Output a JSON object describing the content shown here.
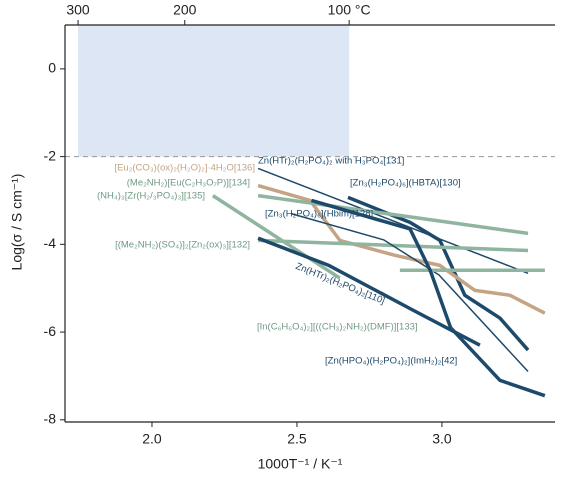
{
  "chart_data": {
    "type": "line",
    "xlabel": "1000T⁻¹ / K⁻¹",
    "ylabel": "Log(σ / S cm⁻¹)",
    "xlim": [
      1.7,
      3.39
    ],
    "ylim": [
      -8.05,
      1.0
    ],
    "xticks": [
      {
        "value": 2,
        "label": "2.0"
      },
      2.5,
      {
        "value": 3,
        "label": "3.0"
      }
    ],
    "yticks": [
      0,
      -2,
      -4,
      -6,
      -8
    ],
    "x2ticks": [
      {
        "value": 1.745,
        "label": "300"
      },
      {
        "value": 2.113,
        "label": "200"
      },
      {
        "value": 2.68,
        "label": "100 °C"
      }
    ],
    "shaded_region": {
      "x": [
        1.745,
        2.68
      ],
      "y_from": -2,
      "color": "#dde6f5"
    },
    "hline": -2,
    "series": [
      {
        "name": "Zn(HTr)₂(H₂PO₄)₂ with H₃PO₄[131]",
        "color": "#1d4a6b",
        "line_width": 1.5,
        "x": [
          2.366,
          3.297
        ],
        "values": [
          -2.27,
          -4.66
        ]
      },
      {
        "name": "[Zn₃(H₂PO₄)₆](HBTA)[130]",
        "color": "#1d4a6b",
        "line_width": 3.5,
        "x": [
          2.676,
          2.89,
          2.993,
          3.079,
          3.2,
          3.297
        ],
        "values": [
          -2.93,
          -3.5,
          -3.91,
          -5.16,
          -5.68,
          -6.41
        ]
      },
      {
        "name": "[Eu₂(CO₃)(ox)₂(H₂O)₂]·4H₂O[136]",
        "color": "#c4a484",
        "line_width": 3.5,
        "x": [
          2.366,
          2.545,
          2.648,
          2.838,
          2.993,
          3.114,
          3.234,
          3.355
        ],
        "values": [
          -2.66,
          -3.0,
          -3.91,
          -4.25,
          -4.48,
          -5.05,
          -5.16,
          -5.57
        ]
      },
      {
        "name": "(Me₂NH₂)[Eu(C₂H₃O₇P)][134]",
        "color": "#8fb5a0",
        "line_width": 3.5,
        "x": [
          2.366,
          3.297
        ],
        "values": [
          -2.89,
          -3.75
        ]
      },
      {
        "name": "(NH₄)₃[Zr(H₂/₃PO₄)₃][135]",
        "color": "#8fb5a0",
        "line_width": 3.5,
        "x": [
          2.21,
          2.648
        ],
        "values": [
          -2.89,
          -4.77
        ]
      },
      {
        "name": "[(Me₂NH₂)(SO₄)]₂[Zn₂(ox)₃][132]",
        "color": "#8fb5a0",
        "line_width": 3.5,
        "x": [
          2.366,
          3.297
        ],
        "values": [
          -3.91,
          -4.14
        ]
      },
      {
        "name": "[Zn₃(H₂PO₄)₆](Hbim)[128]",
        "color": "#1d4a6b",
        "line_width": 1.5,
        "x": [
          2.48,
          2.8,
          2.99,
          3.297
        ],
        "values": [
          -3.3,
          -3.9,
          -4.7,
          -6.9
        ]
      },
      {
        "name": "Zn(HTr)₂(H₂PO₄)₂[110]",
        "color": "#1d4a6b",
        "line_width": 3.5,
        "x": [
          2.366,
          2.61,
          2.9,
          3.131
        ],
        "values": [
          -3.86,
          -4.48,
          -5.5,
          -6.3
        ]
      },
      {
        "name": "[In(C₆H₆O₄)₂][((CH₃)₂NH₂)(DMF)][133]",
        "color": "#8fb5a0",
        "line_width": 3.5,
        "x": [
          2.855,
          3.355
        ],
        "values": [
          -4.59,
          -4.59
        ]
      },
      {
        "name": "[Zn(HPO₄)(H₂PO₄)₂](ImH₂)₂[42]",
        "color": "#1d4a6b",
        "line_width": 3.5,
        "x": [
          2.55,
          2.89,
          2.96,
          3.03,
          3.2,
          3.355
        ],
        "values": [
          -3.0,
          -3.65,
          -4.6,
          -5.9,
          -7.1,
          -7.45
        ]
      }
    ]
  }
}
